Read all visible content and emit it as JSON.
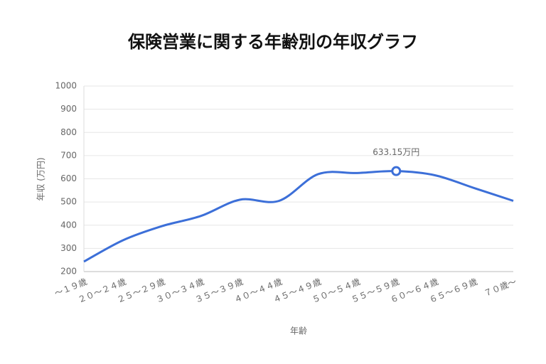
{
  "chart_data": {
    "type": "line",
    "title": "保険営業に関する年齢別の年収グラフ",
    "x_label": "年齢",
    "y_label": "年収 (万円)",
    "categories": [
      "～１９歳",
      "２０～２４歳",
      "２５～２９歳",
      "３０～３４歳",
      "３５～３９歳",
      "４０～４４歳",
      "４５～４９歳",
      "５０～５４歳",
      "５５～５９歳",
      "６０～６４歳",
      "６５～６９歳",
      "７０歳～"
    ],
    "series": [
      {
        "name": "年収",
        "color": "#3c6fd8",
        "values": [
          243,
          335,
          396,
          440,
          510,
          505,
          620,
          625,
          633.15,
          615,
          560,
          505
        ],
        "value_labels": [
          null,
          null,
          null,
          null,
          null,
          null,
          null,
          null,
          "633.15万円",
          null,
          null,
          null
        ]
      }
    ],
    "ylim": [
      200,
      1000
    ],
    "yticks": [
      200,
      300,
      400,
      500,
      600,
      700,
      800,
      900,
      1000
    ],
    "grid": true
  }
}
